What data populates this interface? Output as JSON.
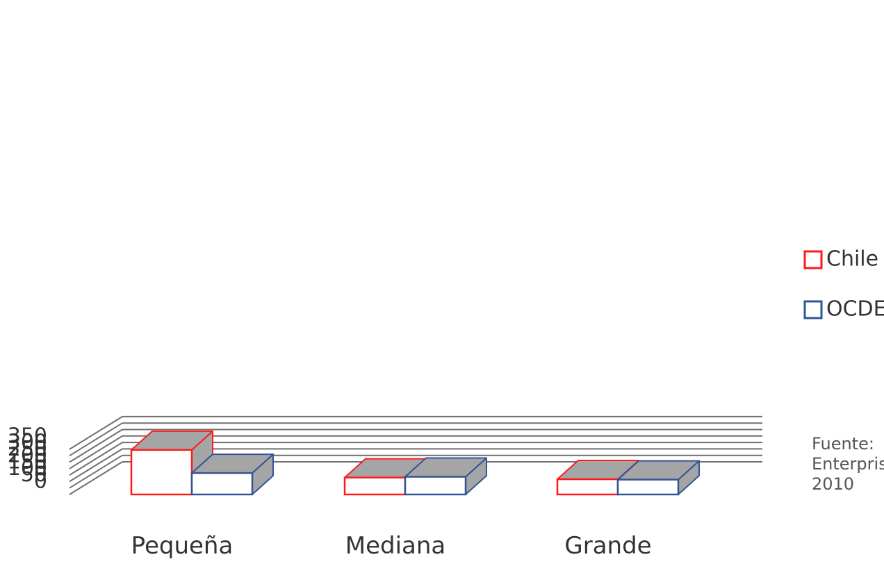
{
  "chart_data": {
    "type": "bar",
    "title": "",
    "xlabel": "",
    "ylabel": "",
    "categories": [
      "Pequeña",
      "Mediana",
      "Grande"
    ],
    "series": [
      {
        "name": "Chile",
        "values": [
          345,
          131,
          118
        ]
      },
      {
        "name": "OCDE",
        "values": [
          166,
          137,
          115
        ]
      }
    ],
    "ylim": [
      0,
      350
    ],
    "yticks": [
      "0",
      "50",
      "100",
      "150",
      "200",
      "250",
      "300",
      "350"
    ],
    "grid": true,
    "style": "3d-clustered-column",
    "legend_position": "right",
    "colors": {
      "Chile": "#ff1a1a",
      "OCDE": "#2f5597",
      "face": "#ffffff",
      "side": "#a5a5a5",
      "grid": "#6f6f6f"
    }
  },
  "source_note": "Fuente:\nEnterpris\n2010"
}
